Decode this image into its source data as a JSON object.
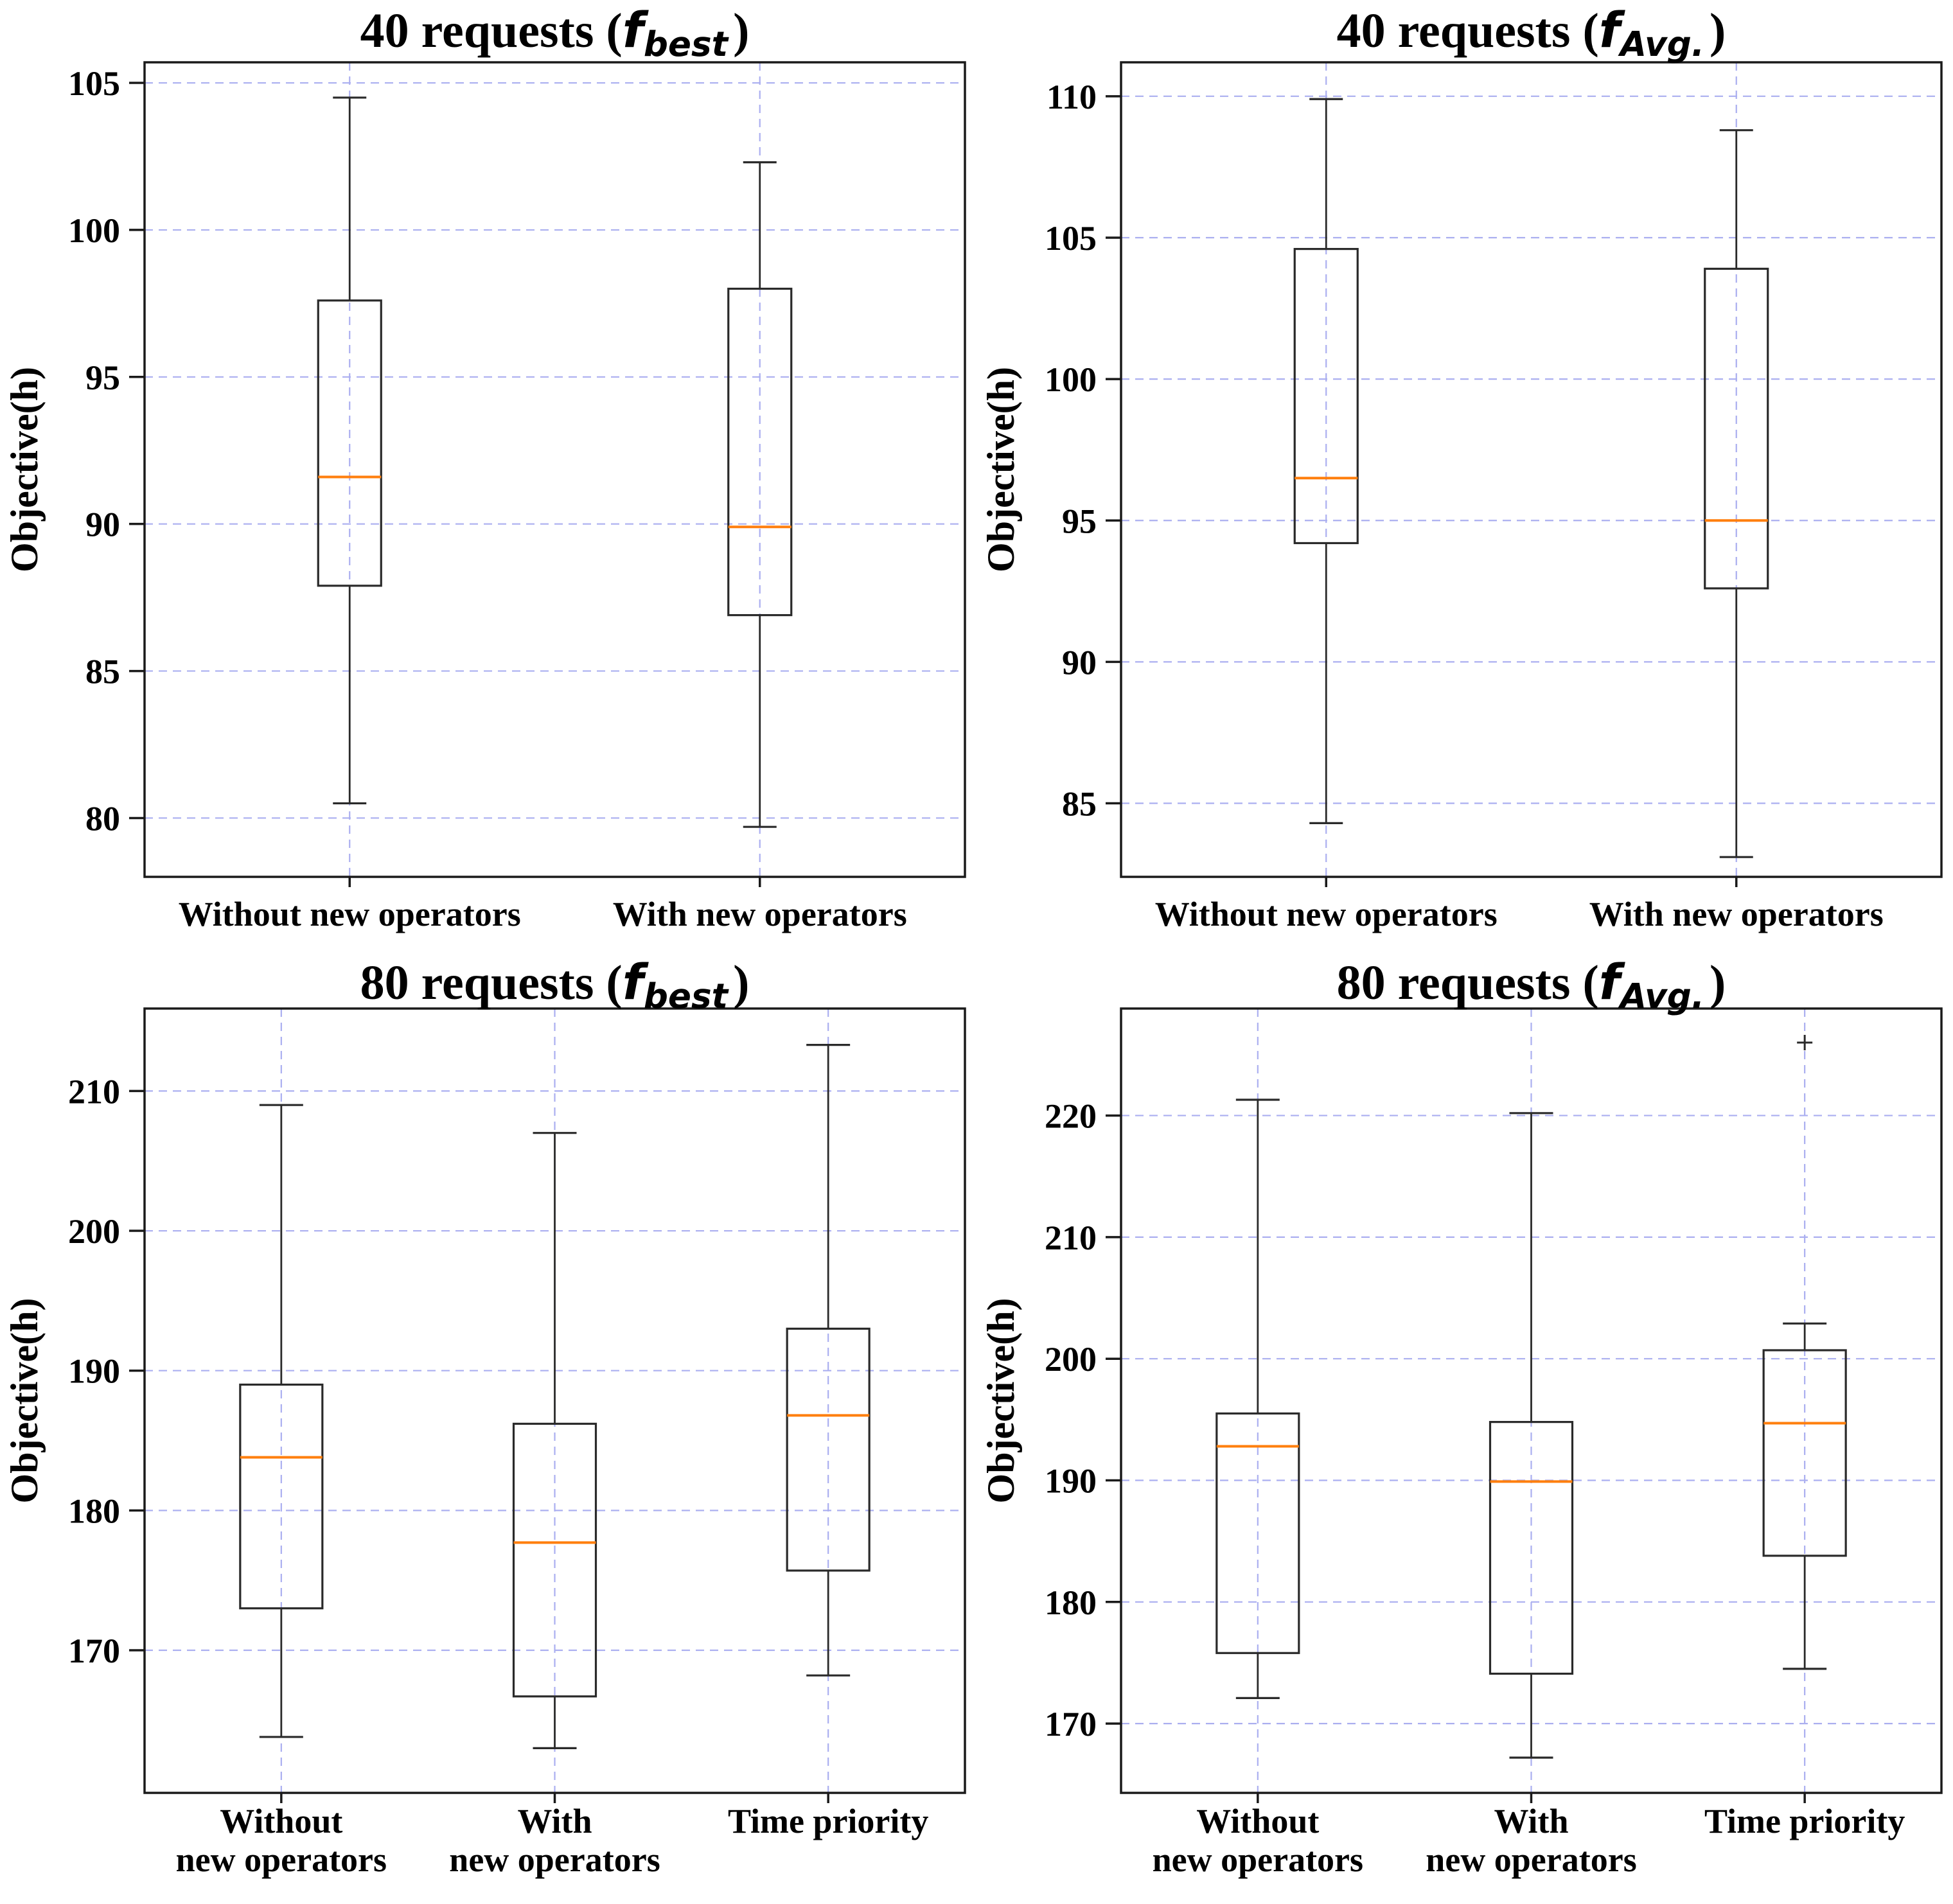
{
  "figure": {
    "background": "#ffffff"
  },
  "colors": {
    "axis": "#1a1a1a",
    "box_edge": "#2a2a2a",
    "median": "#ff7f0e",
    "grid": "#abaff0",
    "text": "#000000"
  },
  "chart_data": [
    {
      "type": "box",
      "title": {
        "prefix": "40 requests (",
        "math": "f",
        "subscript": "best",
        "suffix": ")"
      },
      "ylabel": "Objective(h)",
      "grid": true,
      "legend": "none",
      "yticks": [
        80,
        85,
        90,
        95,
        100,
        105
      ],
      "ylim": [
        78.0,
        105.7
      ],
      "categories": [
        [
          "Without new operators"
        ],
        [
          "With new operators"
        ]
      ],
      "boxes": [
        {
          "label": "Without new operators",
          "whislo": 80.5,
          "q1": 87.9,
          "med": 91.6,
          "q3": 97.6,
          "whishi": 104.5,
          "fliers": []
        },
        {
          "label": "With new operators",
          "whislo": 79.7,
          "q1": 86.9,
          "med": 89.9,
          "q3": 98.0,
          "whishi": 102.3,
          "fliers": []
        }
      ]
    },
    {
      "type": "box",
      "title": {
        "prefix": "40 requests (",
        "math": "f",
        "subscript": "Avg.",
        "suffix": ")"
      },
      "ylabel": "Objective(h)",
      "grid": true,
      "legend": "none",
      "yticks": [
        85,
        90,
        95,
        100,
        105,
        110
      ],
      "ylim": [
        82.4,
        111.2
      ],
      "categories": [
        [
          "Without new operators"
        ],
        [
          "With new operators"
        ]
      ],
      "boxes": [
        {
          "label": "Without new operators",
          "whislo": 84.3,
          "q1": 94.2,
          "med": 96.5,
          "q3": 104.6,
          "whishi": 109.9,
          "fliers": []
        },
        {
          "label": "With new operators",
          "whislo": 83.1,
          "q1": 92.6,
          "med": 95.0,
          "q3": 103.9,
          "whishi": 108.8,
          "fliers": []
        }
      ]
    },
    {
      "type": "box",
      "title": {
        "prefix": "80 requests (",
        "math": "f",
        "subscript": "best",
        "suffix": ")"
      },
      "ylabel": "Objective(h)",
      "grid": true,
      "legend": "none",
      "yticks": [
        170,
        180,
        190,
        200,
        210
      ],
      "ylim": [
        159.8,
        215.9
      ],
      "categories": [
        [
          "Without",
          "new operators"
        ],
        [
          "With",
          "new operators"
        ],
        [
          "Time priority"
        ]
      ],
      "boxes": [
        {
          "label": "Without new operators",
          "whislo": 163.8,
          "q1": 173.0,
          "med": 183.8,
          "q3": 189.0,
          "whishi": 209.0,
          "fliers": []
        },
        {
          "label": "With new operators",
          "whislo": 163.0,
          "q1": 166.7,
          "med": 177.7,
          "q3": 186.2,
          "whishi": 207.0,
          "fliers": []
        },
        {
          "label": "Time priority",
          "whislo": 168.2,
          "q1": 175.7,
          "med": 186.8,
          "q3": 193.0,
          "whishi": 213.3,
          "fliers": []
        }
      ]
    },
    {
      "type": "box",
      "title": {
        "prefix": "80 requests (",
        "math": "f",
        "subscript": "Avg.",
        "suffix": ")"
      },
      "ylabel": "Objective(h)",
      "grid": true,
      "legend": "none",
      "yticks": [
        170,
        180,
        190,
        200,
        210,
        220
      ],
      "ylim": [
        164.3,
        228.8
      ],
      "categories": [
        [
          "Without",
          "new operators"
        ],
        [
          "With",
          "new operators"
        ],
        [
          "Time priority"
        ]
      ],
      "boxes": [
        {
          "label": "Without new operators",
          "whislo": 172.1,
          "q1": 175.8,
          "med": 192.8,
          "q3": 195.5,
          "whishi": 221.3,
          "fliers": []
        },
        {
          "label": "With new operators",
          "whislo": 167.2,
          "q1": 174.1,
          "med": 189.9,
          "q3": 194.8,
          "whishi": 220.2,
          "fliers": []
        },
        {
          "label": "Time priority",
          "whislo": 174.5,
          "q1": 183.8,
          "med": 194.7,
          "q3": 200.7,
          "whishi": 202.9,
          "fliers": [
            226.0
          ]
        }
      ]
    }
  ]
}
